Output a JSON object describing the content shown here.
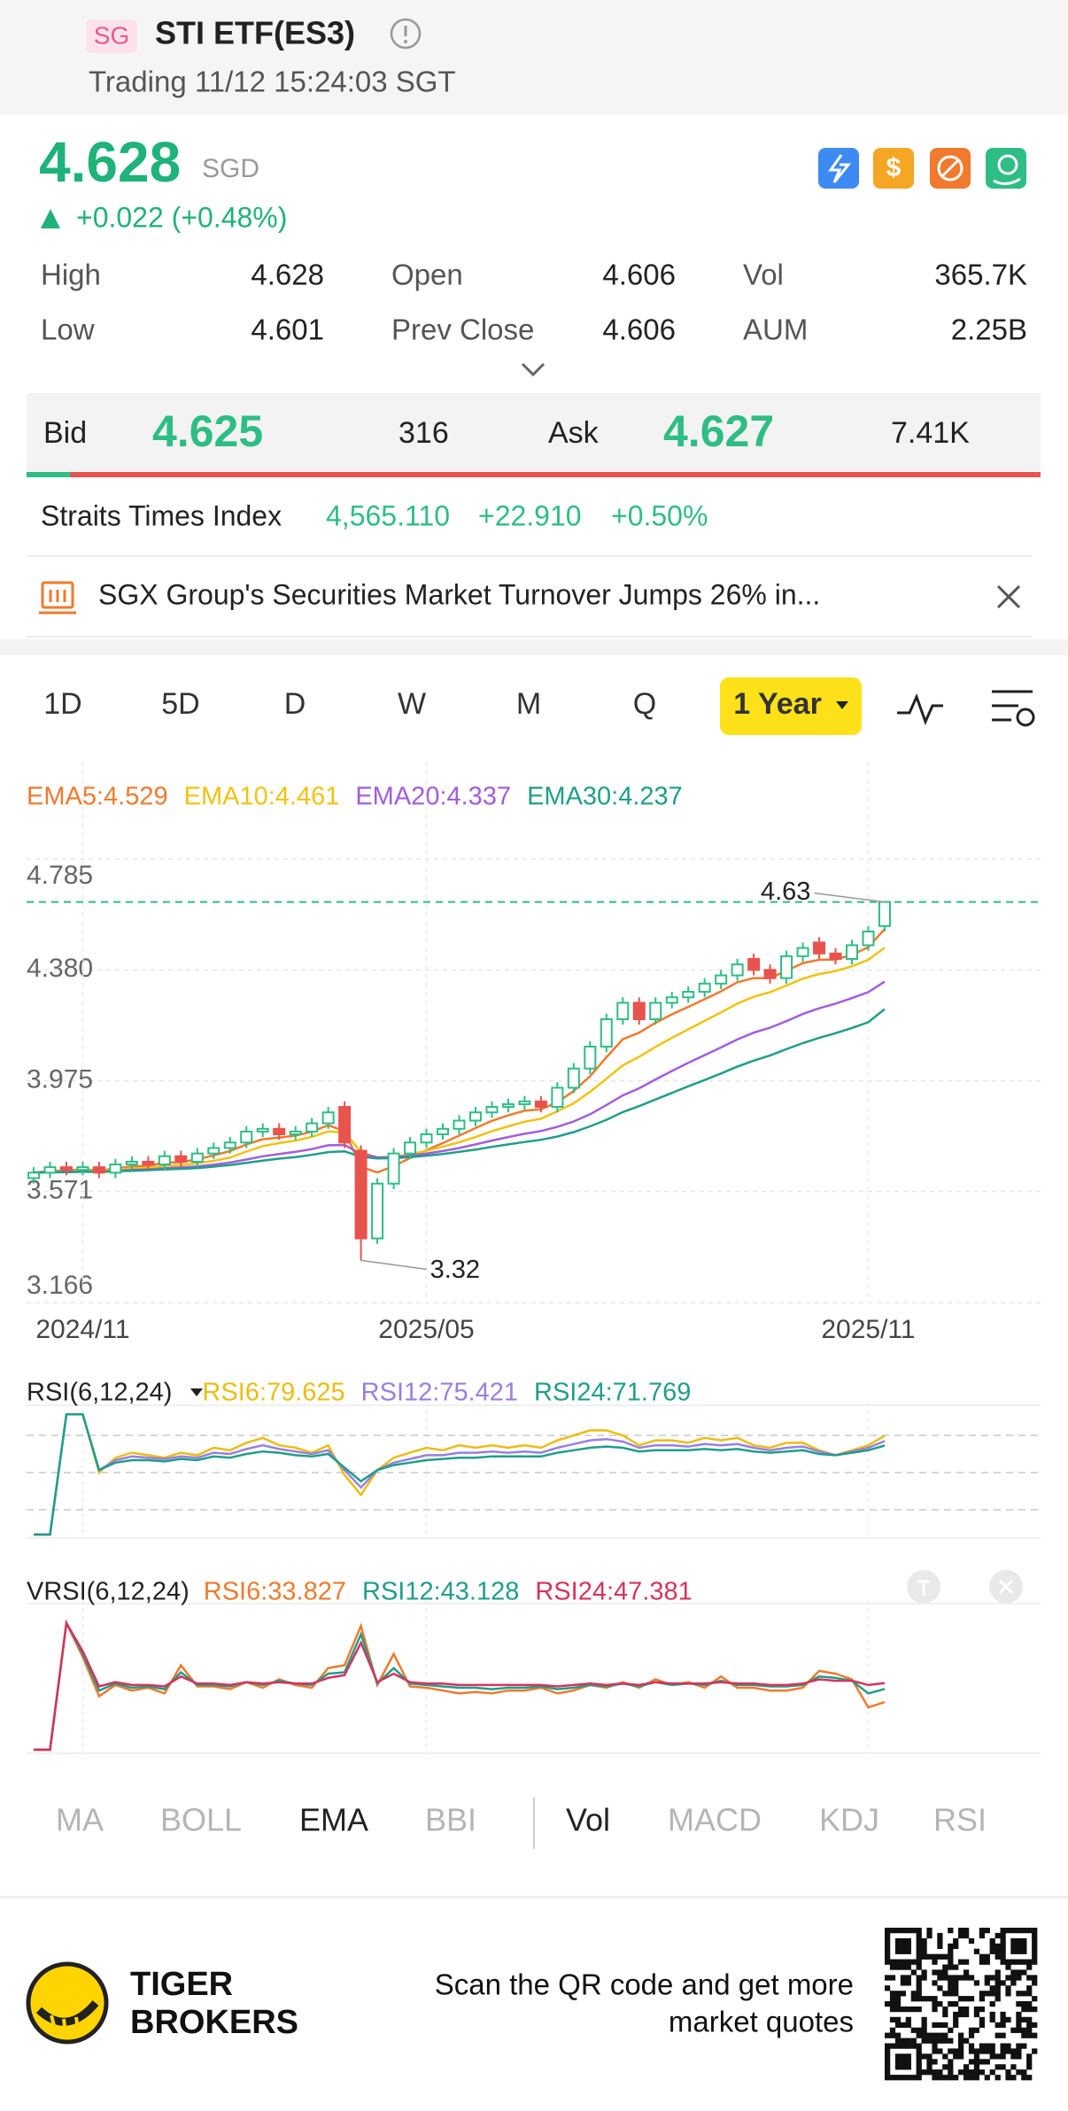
{
  "header": {
    "badge": "SG",
    "title": "STI ETF(ES3)",
    "status": "Trading 11/12 15:24:03 SGT"
  },
  "quote": {
    "price": "4.628",
    "currency": "SGD",
    "change": "+0.022 (+0.48%)"
  },
  "stats": [
    [
      "High",
      "4.628"
    ],
    [
      "Open",
      "4.606"
    ],
    [
      "Vol",
      "365.7K"
    ],
    [
      "Low",
      "4.601"
    ],
    [
      "Prev Close",
      "4.606"
    ],
    [
      "AUM",
      "2.25B"
    ]
  ],
  "bidask": {
    "bid_label": "Bid",
    "bid": "4.625",
    "bid_size": "316",
    "ask_label": "Ask",
    "ask": "4.627",
    "ask_size": "7.41K"
  },
  "index": {
    "name": "Straits Times Index",
    "value": "4,565.110",
    "change": "+22.910",
    "percent": "+0.50%"
  },
  "news": "SGX Group's Securities Market Turnover Jumps 26% in...",
  "tabs": [
    "1D",
    "5D",
    "D",
    "W",
    "M",
    "Q",
    "1 Year"
  ],
  "indicators": [
    "MA",
    "BOLL",
    "EMA",
    "BBI",
    "Vol",
    "MACD",
    "KDJ",
    "RSI"
  ],
  "footer": {
    "brand": [
      "TIGER",
      "BROKERS"
    ],
    "scan": [
      "Scan the QR code and get more",
      "market quotes"
    ]
  },
  "chart_data": [
    {
      "type": "candlestick",
      "categories": [
        null,
        null,
        null,
        "2024/11",
        null,
        null,
        null,
        null,
        null,
        null,
        null,
        null,
        null,
        null,
        null,
        null,
        null,
        null,
        null,
        null,
        null,
        null,
        null,
        null,
        "2025/05",
        null,
        null,
        null,
        null,
        null,
        null,
        null,
        null,
        null,
        null,
        null,
        null,
        null,
        null,
        null,
        null,
        null,
        null,
        null,
        null,
        null,
        null,
        null,
        null,
        null,
        null,
        "2025/11",
        null
      ],
      "open": [
        3.62,
        3.64,
        3.66,
        3.65,
        3.66,
        3.64,
        3.67,
        3.68,
        3.67,
        3.7,
        3.68,
        3.71,
        3.73,
        3.75,
        3.79,
        3.8,
        3.78,
        3.79,
        3.82,
        3.88,
        3.72,
        3.4,
        3.6,
        3.71,
        3.75,
        3.78,
        3.8,
        3.83,
        3.86,
        3.88,
        3.89,
        3.9,
        3.88,
        3.95,
        4.02,
        4.1,
        4.2,
        4.26,
        4.2,
        4.26,
        4.28,
        4.3,
        4.33,
        4.36,
        4.42,
        4.38,
        4.35,
        4.43,
        4.48,
        4.44,
        4.42,
        4.47,
        4.54
      ],
      "high": [
        3.66,
        3.68,
        3.68,
        3.68,
        3.68,
        3.69,
        3.7,
        3.7,
        3.72,
        3.72,
        3.73,
        3.75,
        3.77,
        3.81,
        3.82,
        3.82,
        3.81,
        3.84,
        3.88,
        3.9,
        3.74,
        3.62,
        3.73,
        3.77,
        3.8,
        3.82,
        3.85,
        3.88,
        3.9,
        3.91,
        3.92,
        3.92,
        3.97,
        4.04,
        4.12,
        4.22,
        4.28,
        4.28,
        4.28,
        4.3,
        4.32,
        4.35,
        4.38,
        4.42,
        4.44,
        4.4,
        4.45,
        4.48,
        4.5,
        4.46,
        4.49,
        4.54,
        4.628
      ],
      "low": [
        3.6,
        3.62,
        3.63,
        3.63,
        3.62,
        3.62,
        3.65,
        3.65,
        3.65,
        3.66,
        3.66,
        3.69,
        3.71,
        3.73,
        3.77,
        3.76,
        3.76,
        3.77,
        3.8,
        3.73,
        3.32,
        3.38,
        3.58,
        3.69,
        3.73,
        3.76,
        3.78,
        3.81,
        3.84,
        3.86,
        3.87,
        3.86,
        3.86,
        3.93,
        4.0,
        4.08,
        4.18,
        4.18,
        4.18,
        4.24,
        4.26,
        4.28,
        4.31,
        4.34,
        4.36,
        4.33,
        4.33,
        4.41,
        4.42,
        4.4,
        4.4,
        4.45,
        4.52
      ],
      "close": [
        3.64,
        3.66,
        3.65,
        3.66,
        3.64,
        3.67,
        3.68,
        3.67,
        3.7,
        3.68,
        3.71,
        3.73,
        3.75,
        3.79,
        3.8,
        3.78,
        3.79,
        3.82,
        3.86,
        3.75,
        3.4,
        3.6,
        3.71,
        3.75,
        3.78,
        3.8,
        3.83,
        3.86,
        3.88,
        3.89,
        3.9,
        3.88,
        3.95,
        4.02,
        4.1,
        4.2,
        4.26,
        4.2,
        4.26,
        4.28,
        4.3,
        4.33,
        4.36,
        4.4,
        4.38,
        4.35,
        4.43,
        4.46,
        4.44,
        4.42,
        4.47,
        4.52,
        4.628
      ],
      "color_up": "#2ebd85",
      "color_down": "#e8534e",
      "ylim": [
        3.166,
        4.785
      ],
      "yticks": [
        4.785,
        {
          "value": 4.38,
          "label": "4.380"
        },
        3.975,
        3.571,
        3.166
      ],
      "grid": true,
      "annotations": [
        {
          "text": "4.63"
        },
        {
          "text": "3.32"
        }
      ],
      "series": [
        {
          "name": "EMA5:4.529",
          "color": "#f07a2d",
          "values": [
            3.64,
            3.647,
            3.648,
            3.652,
            3.648,
            3.655,
            3.663,
            3.665,
            3.677,
            3.678,
            3.689,
            3.703,
            3.719,
            3.743,
            3.762,
            3.768,
            3.775,
            3.79,
            3.813,
            3.792,
            3.661,
            3.641,
            3.664,
            3.693,
            3.722,
            3.748,
            3.775,
            3.803,
            3.829,
            3.849,
            3.866,
            3.871,
            3.897,
            3.938,
            3.992,
            4.061,
            4.127,
            4.151,
            4.187,
            4.218,
            4.245,
            4.273,
            4.302,
            4.335,
            4.35,
            4.35,
            4.377,
            4.405,
            4.417,
            4.418,
            4.435,
            4.463,
            4.529
          ]
        },
        {
          "name": "EMA10:4.461",
          "color": "#f2c20f",
          "values": [
            3.64,
            3.644,
            3.645,
            3.647,
            3.646,
            3.65,
            3.656,
            3.658,
            3.665,
            3.668,
            3.675,
            3.683,
            3.695,
            3.717,
            3.737,
            3.748,
            3.757,
            3.771,
            3.79,
            3.787,
            3.716,
            3.695,
            3.698,
            3.707,
            3.72,
            3.735,
            3.751,
            3.77,
            3.791,
            3.809,
            3.826,
            3.837,
            3.864,
            3.893,
            3.935,
            3.983,
            4.032,
            4.063,
            4.099,
            4.132,
            4.163,
            4.194,
            4.225,
            4.257,
            4.282,
            4.299,
            4.323,
            4.348,
            4.365,
            4.376,
            4.393,
            4.417,
            4.461
          ]
        },
        {
          "name": "EMA20:4.337",
          "color": "#a25ddc",
          "values": [
            3.64,
            3.642,
            3.643,
            3.644,
            3.644,
            3.646,
            3.65,
            3.652,
            3.656,
            3.659,
            3.663,
            3.669,
            3.677,
            3.688,
            3.7,
            3.708,
            3.716,
            3.726,
            3.74,
            3.741,
            3.709,
            3.696,
            3.697,
            3.702,
            3.71,
            3.719,
            3.73,
            3.743,
            3.757,
            3.77,
            3.782,
            3.792,
            3.807,
            3.827,
            3.853,
            3.887,
            3.922,
            3.948,
            3.98,
            4.011,
            4.041,
            4.069,
            4.097,
            4.126,
            4.151,
            4.169,
            4.193,
            4.219,
            4.24,
            4.257,
            4.277,
            4.299,
            4.337
          ]
        },
        {
          "name": "EMA30:4.237",
          "color": "#1f9e8a",
          "values": [
            3.64,
            3.641,
            3.642,
            3.643,
            3.643,
            3.645,
            3.647,
            3.649,
            3.652,
            3.654,
            3.657,
            3.662,
            3.668,
            3.676,
            3.684,
            3.691,
            3.697,
            3.705,
            3.715,
            3.718,
            3.698,
            3.692,
            3.693,
            3.697,
            3.702,
            3.708,
            3.716,
            3.724,
            3.734,
            3.743,
            3.752,
            3.76,
            3.772,
            3.788,
            3.809,
            3.833,
            3.861,
            3.883,
            3.907,
            3.931,
            3.955,
            3.978,
            4.002,
            4.027,
            4.049,
            4.068,
            4.091,
            4.113,
            4.132,
            4.149,
            4.168,
            4.189,
            4.237
          ]
        }
      ]
    },
    {
      "type": "line",
      "title": "RSI(6,12,24)",
      "ylim": [
        0,
        100
      ],
      "reference_lines": [
        80,
        50,
        20
      ],
      "series": [
        {
          "name": "RSI6:79.625",
          "color": "#ebbd13",
          "values": [
            0,
            0,
            97,
            97,
            50,
            62,
            66,
            64,
            62,
            66,
            64,
            70,
            68,
            74,
            78,
            72,
            70,
            66,
            72,
            48,
            32,
            52,
            62,
            66,
            70,
            68,
            72,
            70,
            72,
            70,
            72,
            70,
            76,
            80,
            84,
            84,
            80,
            72,
            76,
            76,
            74,
            78,
            76,
            78,
            72,
            70,
            74,
            74,
            68,
            64,
            68,
            72,
            79.625
          ]
        },
        {
          "name": "RSI12:75.421",
          "color": "#9a7fe0",
          "values": [
            0,
            0,
            97,
            97,
            52,
            60,
            63,
            62,
            61,
            63,
            62,
            66,
            65,
            69,
            72,
            69,
            67,
            65,
            68,
            52,
            38,
            52,
            58,
            61,
            64,
            64,
            66,
            66,
            67,
            66,
            67,
            66,
            70,
            73,
            76,
            77,
            75,
            70,
            72,
            72,
            71,
            73,
            72,
            73,
            70,
            68,
            70,
            71,
            67,
            64,
            67,
            70,
            75.421
          ]
        },
        {
          "name": "RSI24:71.769",
          "color": "#1f9e8a",
          "values": [
            0,
            0,
            97,
            97,
            52,
            58,
            60,
            60,
            59,
            61,
            60,
            63,
            62,
            65,
            67,
            66,
            64,
            63,
            65,
            54,
            43,
            52,
            56,
            58,
            60,
            61,
            62,
            62,
            63,
            63,
            63,
            63,
            66,
            68,
            70,
            71,
            70,
            67,
            68,
            68,
            68,
            69,
            68,
            69,
            67,
            66,
            67,
            68,
            65,
            64,
            66,
            68,
            71.769
          ]
        }
      ]
    },
    {
      "type": "line",
      "title": "VRSI(6,12,24)",
      "ylim": [
        0,
        100
      ],
      "series": [
        {
          "name": "RSI6:33.827",
          "color": "#f07a2d",
          "values": [
            0,
            0,
            90,
            66,
            38,
            46,
            42,
            44,
            40,
            60,
            45,
            45,
            43,
            48,
            44,
            50,
            46,
            44,
            58,
            60,
            88,
            46,
            68,
            45,
            44,
            42,
            40,
            41,
            40,
            42,
            42,
            44,
            40,
            42,
            46,
            44,
            48,
            44,
            50,
            46,
            48,
            44,
            52,
            44,
            44,
            42,
            42,
            44,
            56,
            54,
            50,
            30,
            33.827
          ]
        },
        {
          "name": "RSI12:43.128",
          "color": "#1f9e8a",
          "values": [
            0,
            0,
            90,
            68,
            42,
            47,
            44,
            45,
            43,
            55,
            46,
            46,
            45,
            48,
            46,
            49,
            47,
            46,
            54,
            55,
            82,
            47,
            58,
            47,
            46,
            45,
            44,
            44,
            43,
            44,
            44,
            45,
            43,
            44,
            46,
            45,
            47,
            45,
            48,
            46,
            47,
            46,
            49,
            46,
            46,
            45,
            45,
            46,
            52,
            51,
            49,
            40,
            43.128
          ]
        },
        {
          "name": "RSI24:47.381",
          "color": "#d6335c",
          "values": [
            0,
            0,
            90,
            70,
            45,
            48,
            46,
            46,
            45,
            52,
            47,
            47,
            46,
            48,
            47,
            48,
            47,
            47,
            51,
            53,
            76,
            48,
            54,
            48,
            47,
            47,
            46,
            46,
            46,
            46,
            46,
            46,
            45,
            46,
            47,
            46,
            47,
            46,
            48,
            47,
            47,
            47,
            48,
            47,
            47,
            46,
            46,
            47,
            50,
            49,
            49,
            46,
            47.381
          ]
        }
      ]
    }
  ]
}
